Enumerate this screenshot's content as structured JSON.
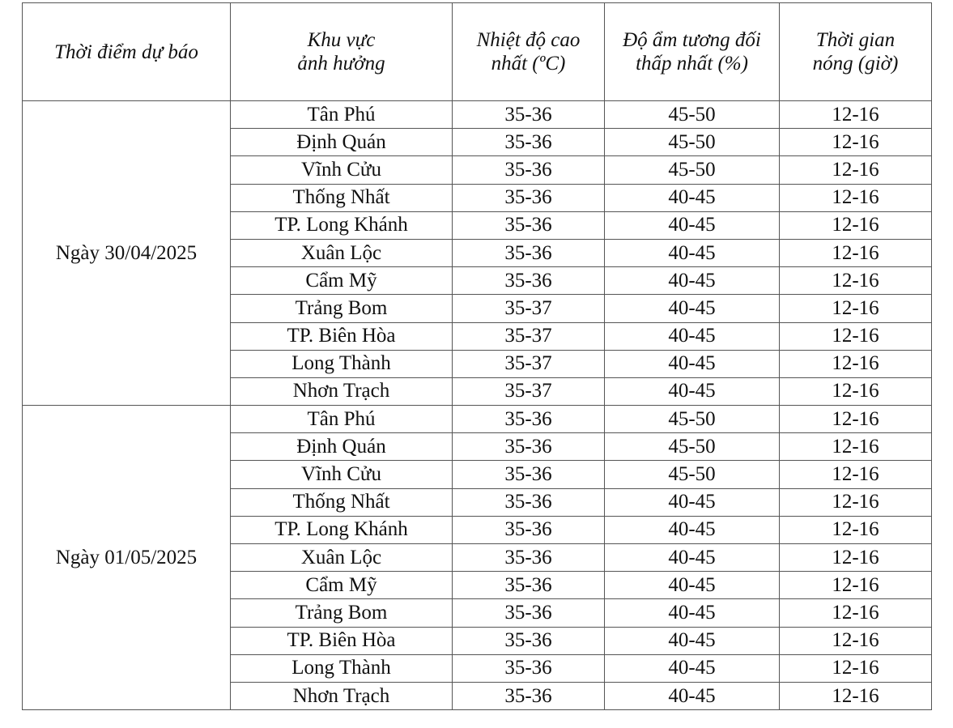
{
  "headers": [
    "Thời điểm dự báo",
    "Khu vực\nảnh hưởng",
    "Nhiệt độ cao nhất (ºC)",
    "Độ ẩm tương đối thấp nhất (%)",
    "Thời gian\nnóng (giờ)"
  ],
  "groups": [
    {
      "date": "Ngày 30/04/2025",
      "rows": [
        [
          "Tân Phú",
          "35-36",
          "45-50",
          "12-16"
        ],
        [
          "Định Quán",
          "35-36",
          "45-50",
          "12-16"
        ],
        [
          "Vĩnh Cửu",
          "35-36",
          "45-50",
          "12-16"
        ],
        [
          "Thống Nhất",
          "35-36",
          "40-45",
          "12-16"
        ],
        [
          "TP. Long Khánh",
          "35-36",
          "40-45",
          "12-16"
        ],
        [
          "Xuân Lộc",
          "35-36",
          "40-45",
          "12-16"
        ],
        [
          "Cẩm Mỹ",
          "35-36",
          "40-45",
          "12-16"
        ],
        [
          "Trảng Bom",
          "35-37",
          "40-45",
          "12-16"
        ],
        [
          "TP. Biên Hòa",
          "35-37",
          "40-45",
          "12-16"
        ],
        [
          "Long Thành",
          "35-37",
          "40-45",
          "12-16"
        ],
        [
          "Nhơn Trạch",
          "35-37",
          "40-45",
          "12-16"
        ]
      ]
    },
    {
      "date": "Ngày 01/05/2025",
      "rows": [
        [
          "Tân Phú",
          "35-36",
          "45-50",
          "12-16"
        ],
        [
          "Định Quán",
          "35-36",
          "45-50",
          "12-16"
        ],
        [
          "Vĩnh Cửu",
          "35-36",
          "45-50",
          "12-16"
        ],
        [
          "Thống Nhất",
          "35-36",
          "40-45",
          "12-16"
        ],
        [
          "TP. Long Khánh",
          "35-36",
          "40-45",
          "12-16"
        ],
        [
          "Xuân Lộc",
          "35-36",
          "40-45",
          "12-16"
        ],
        [
          "Cẩm Mỹ",
          "35-36",
          "40-45",
          "12-16"
        ],
        [
          "Trảng Bom",
          "35-36",
          "40-45",
          "12-16"
        ],
        [
          "TP. Biên Hòa",
          "35-36",
          "40-45",
          "12-16"
        ],
        [
          "Long Thành",
          "35-36",
          "40-45",
          "12-16"
        ],
        [
          "Nhơn Trạch",
          "35-36",
          "40-45",
          "12-16"
        ]
      ]
    }
  ]
}
